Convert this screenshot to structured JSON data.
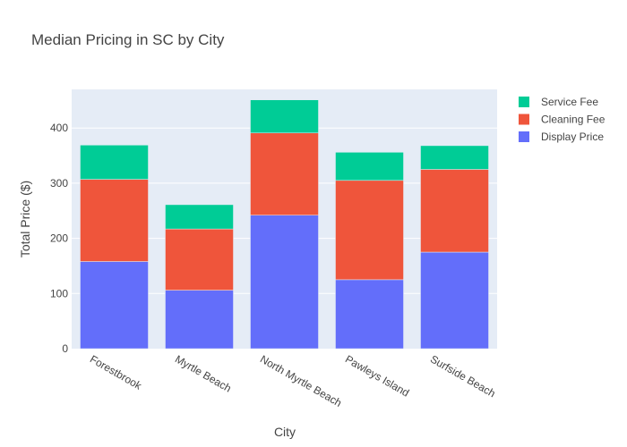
{
  "chart_data": {
    "type": "bar",
    "stacked": true,
    "title": "Median Pricing in SC by City",
    "xlabel": "City",
    "ylabel": "Total Price ($)",
    "categories": [
      "Forestbrook",
      "Myrtle Beach",
      "North Myrtle Beach",
      "Pawleys Island",
      "Surfside Beach"
    ],
    "ylim": [
      0,
      470
    ],
    "yticks": [
      0,
      100,
      200,
      300,
      400
    ],
    "grid": true,
    "legend_position": "top-right",
    "series": [
      {
        "name": "Display Price",
        "color": "#636efa",
        "values": [
          158,
          106,
          242,
          125,
          175
        ]
      },
      {
        "name": "Cleaning Fee",
        "color": "#ef553b",
        "values": [
          149,
          111,
          149,
          180,
          150
        ]
      },
      {
        "name": "Service Fee",
        "color": "#00cc96",
        "values": [
          62,
          44,
          60,
          51,
          43
        ]
      }
    ]
  }
}
